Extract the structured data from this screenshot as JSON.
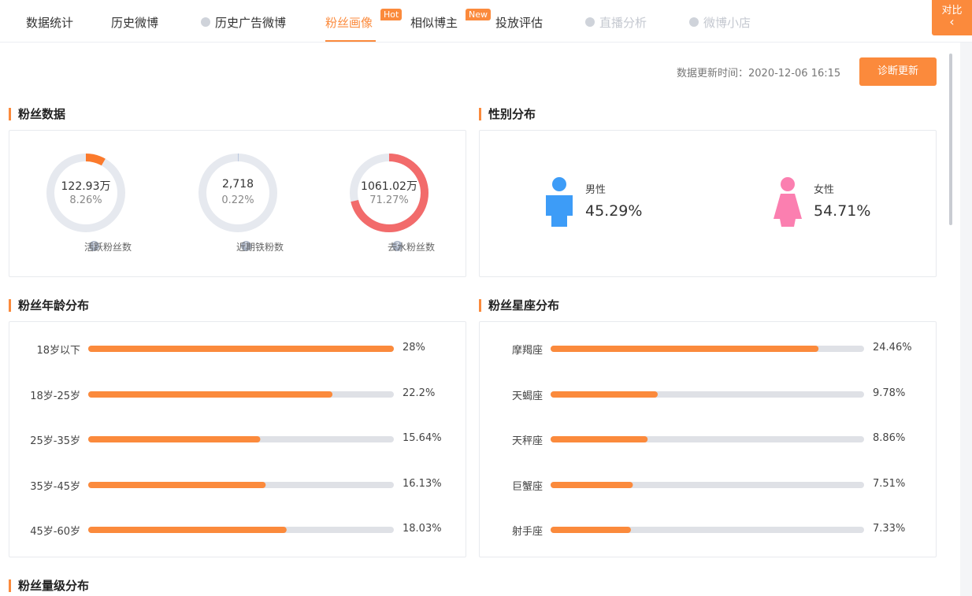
{
  "tabs": [
    "数据统计",
    "历史微博",
    "历史广告微博",
    "粉丝画像",
    "相似博主",
    "投放评估",
    "直播分析",
    "微博小店"
  ],
  "badges": {
    "hot": "Hot",
    "new": "New"
  },
  "compare_button": "对比",
  "update": {
    "label": "数据更新时间：",
    "time": "2020-12-06 16:15",
    "button": "诊断更新"
  },
  "fan_data": {
    "title": "粉丝数据",
    "items": [
      {
        "value": "122.93万",
        "percent": 8.26,
        "percent_label": "8.26%",
        "label": "活跃粉丝数",
        "color": "#fb7a2c"
      },
      {
        "value": "2,718",
        "percent": 0.22,
        "percent_label": "0.22%",
        "label": "近期铁粉数",
        "color": "#9fb4d6"
      },
      {
        "value": "1061.02万",
        "percent": 71.27,
        "percent_label": "71.27%",
        "label": "去水粉丝数",
        "color": "#f26b6b"
      }
    ]
  },
  "gender": {
    "title": "性别分布",
    "items": [
      {
        "label": "男性",
        "value": 45.29,
        "value_label": "45.29%",
        "color": "#3d9cf7"
      },
      {
        "label": "女性",
        "value": 54.71,
        "value_label": "54.71%",
        "color": "#fb7fb0"
      }
    ]
  },
  "age": {
    "title": "粉丝年龄分布",
    "categories": [
      "18岁以下",
      "18岁-25岁",
      "25岁-35岁",
      "35岁-45岁",
      "45岁-60岁"
    ],
    "values": [
      28,
      22.2,
      15.64,
      16.13,
      18.03
    ],
    "value_labels": [
      "28%",
      "22.2%",
      "15.64%",
      "16.13%",
      "18.03%"
    ]
  },
  "zodiac": {
    "title": "粉丝星座分布",
    "categories": [
      "摩羯座",
      "天蝎座",
      "天秤座",
      "巨蟹座",
      "射手座"
    ],
    "values": [
      24.46,
      9.78,
      8.86,
      7.51,
      7.33
    ],
    "value_labels": [
      "24.46%",
      "9.78%",
      "8.86%",
      "7.51%",
      "7.33%"
    ]
  },
  "level": {
    "title": "粉丝量级分布"
  }
}
